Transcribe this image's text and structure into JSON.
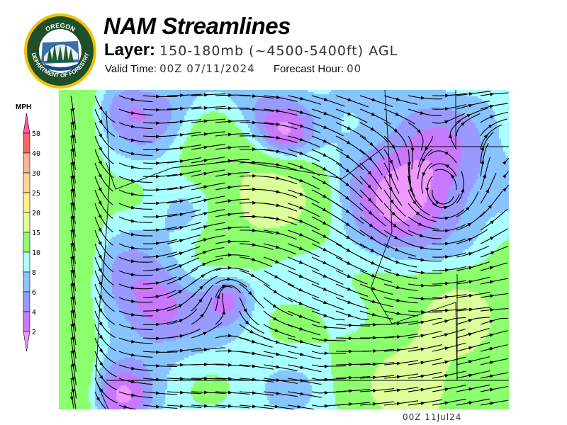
{
  "logo": {
    "top_text": "OREGON",
    "bottom_text": "DEPARTMENT OF FORESTRY"
  },
  "header": {
    "title": "NAM Streamlines",
    "layer_label": "Layer:",
    "layer_value": "150-180mb (~4500-5400ft) AGL",
    "valid_label": "Valid Time:",
    "valid_value": "00Z 07/11/2024",
    "forecast_label": "Forecast Hour:",
    "forecast_value": "00"
  },
  "legend": {
    "units": "MPH",
    "ticks": [
      "50",
      "40",
      "30",
      "25",
      "20",
      "15",
      "10",
      "8",
      "6",
      "4",
      "2"
    ],
    "colors": {
      "above_50": "#ff55aa",
      "40-50": "#ff6464",
      "30-40": "#ffb0a0",
      "25-30": "#ffd494",
      "20-25": "#ffee8a",
      "15-20": "#ddff99",
      "10-15": "#8cff6e",
      "8-10": "#aaffff",
      "6-8": "#88c4ff",
      "4-6": "#9999ff",
      "2-4": "#c877ff",
      "below_2": "#ee99ff"
    }
  },
  "map": {
    "timestamp": "00Z 11Jul24"
  }
}
